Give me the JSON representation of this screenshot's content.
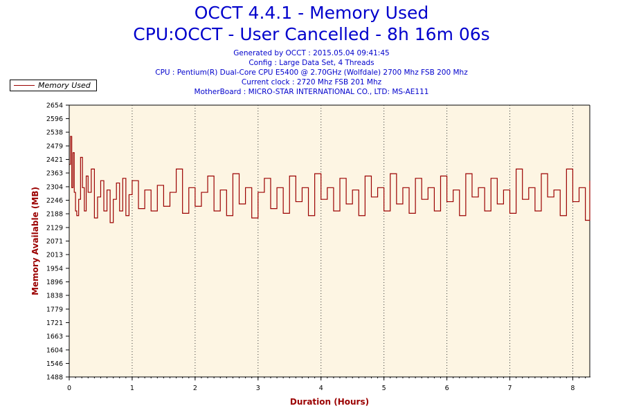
{
  "header": {
    "title": "OCCT 4.4.1 - Memory Used",
    "subtitle": "CPU:OCCT - User Cancelled - 8h 16m 06s",
    "info": [
      "Generated by OCCT : 2015.05.04 09:41:45",
      "Config : Large Data Set, 4 Threads",
      "CPU : Pentium(R) Dual-Core CPU E5400 @ 2.70GHz (Wolfdale) 2700 Mhz FSB 200 Mhz",
      "Current clock : 2720 Mhz FSB 201 Mhz",
      "MotherBoard : MICRO-STAR INTERNATIONAL CO., LTD: MS-AE111"
    ]
  },
  "legend": {
    "label": "Memory Used"
  },
  "colors": {
    "line": "#9b0000",
    "plot_bg": "#fdf5e3",
    "title": "#0000cc"
  },
  "chart_data": {
    "type": "line",
    "title": "OCCT 4.4.1 - Memory Used",
    "xlabel": "Duration (Hours)",
    "ylabel": "Memory Available (MB)",
    "xlim": [
      0,
      8.27
    ],
    "ylim": [
      1488,
      2654
    ],
    "x_ticks": [
      0,
      1,
      2,
      3,
      4,
      5,
      6,
      7,
      8
    ],
    "y_ticks": [
      1488,
      1546,
      1604,
      1663,
      1721,
      1779,
      1838,
      1896,
      1954,
      2013,
      2071,
      2129,
      2188,
      2246,
      2304,
      2363,
      2421,
      2479,
      2538,
      2596,
      2654
    ],
    "grid": "vertical dotted",
    "legend_position": "top-left outside",
    "series": [
      {
        "name": "Memory Used",
        "x": [
          0,
          0.02,
          0.04,
          0.06,
          0.08,
          0.1,
          0.12,
          0.15,
          0.18,
          0.21,
          0.24,
          0.27,
          0.3,
          0.35,
          0.4,
          0.45,
          0.5,
          0.55,
          0.6,
          0.65,
          0.7,
          0.75,
          0.8,
          0.85,
          0.9,
          0.95,
          1.0,
          1.1,
          1.2,
          1.3,
          1.4,
          1.5,
          1.6,
          1.7,
          1.8,
          1.9,
          2.0,
          2.1,
          2.2,
          2.3,
          2.4,
          2.5,
          2.6,
          2.7,
          2.8,
          2.9,
          3.0,
          3.1,
          3.2,
          3.3,
          3.4,
          3.5,
          3.6,
          3.7,
          3.8,
          3.9,
          4.0,
          4.1,
          4.2,
          4.3,
          4.4,
          4.5,
          4.6,
          4.7,
          4.8,
          4.9,
          5.0,
          5.1,
          5.2,
          5.3,
          5.4,
          5.5,
          5.6,
          5.7,
          5.8,
          5.9,
          6.0,
          6.1,
          6.2,
          6.3,
          6.4,
          6.5,
          6.6,
          6.7,
          6.8,
          6.9,
          7.0,
          7.1,
          7.2,
          7.3,
          7.4,
          7.5,
          7.6,
          7.7,
          7.8,
          7.9,
          8.0,
          8.1,
          8.2,
          8.27
        ],
        "values": [
          2400,
          2520,
          2300,
          2450,
          2280,
          2200,
          2180,
          2250,
          2430,
          2300,
          2200,
          2350,
          2280,
          2380,
          2170,
          2260,
          2330,
          2200,
          2290,
          2150,
          2250,
          2320,
          2200,
          2340,
          2180,
          2270,
          2330,
          2210,
          2290,
          2200,
          2310,
          2220,
          2280,
          2380,
          2190,
          2300,
          2220,
          2280,
          2350,
          2200,
          2290,
          2180,
          2360,
          2230,
          2300,
          2170,
          2280,
          2340,
          2210,
          2300,
          2190,
          2350,
          2240,
          2300,
          2180,
          2360,
          2250,
          2300,
          2200,
          2340,
          2230,
          2290,
          2180,
          2350,
          2260,
          2300,
          2200,
          2360,
          2230,
          2300,
          2190,
          2340,
          2250,
          2300,
          2200,
          2350,
          2240,
          2290,
          2180,
          2360,
          2260,
          2300,
          2200,
          2340,
          2230,
          2290,
          2190,
          2380,
          2250,
          2300,
          2200,
          2360,
          2260,
          2290,
          2180,
          2380,
          2240,
          2300,
          2160,
          2330
        ]
      }
    ]
  }
}
